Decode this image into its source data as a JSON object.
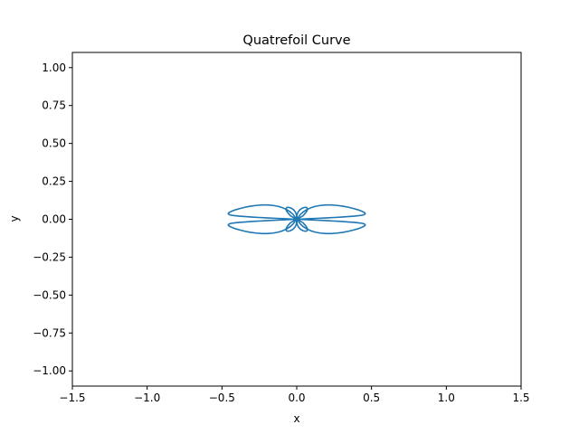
{
  "chart_data": {
    "type": "line",
    "title": "Quatrefoil Curve",
    "xlabel": "x",
    "ylabel": "y",
    "xlim": [
      -1.5,
      1.5
    ],
    "ylim": [
      -1.1,
      1.1
    ],
    "grid": false,
    "x_ticks": [
      -1.5,
      -1.0,
      -0.5,
      0.0,
      0.5,
      1.0,
      1.5
    ],
    "x_tick_labels": [
      "−1.5",
      "−1.0",
      "−0.5",
      "0.0",
      "0.5",
      "1.0",
      "1.5"
    ],
    "y_ticks": [
      1.0,
      0.75,
      0.5,
      0.25,
      0.0,
      -0.25,
      -0.5,
      -0.75,
      -1.0
    ],
    "y_tick_labels": [
      "1.00",
      "0.75",
      "0.50",
      "0.25",
      "0.00",
      "−0.25",
      "−0.50",
      "−0.75",
      "−1.00"
    ],
    "series": [
      {
        "color": "#1f77b4",
        "x": [
          0.0,
          0.046,
          0.091,
          0.134,
          0.176,
          0.216,
          0.253,
          0.288,
          0.32,
          0.349,
          0.375,
          0.398,
          0.418,
          0.434,
          0.447,
          0.455,
          0.458,
          0.455,
          0.446,
          0.43,
          0.408,
          0.38,
          0.347,
          0.311,
          0.272,
          0.233,
          0.194,
          0.157,
          0.123,
          0.092,
          0.066,
          0.044,
          0.027,
          0.015,
          0.007,
          0.003,
          0.001,
          0.002,
          0.005,
          0.011,
          0.02,
          0.031,
          0.044,
          0.057,
          0.067,
          0.072,
          0.07,
          0.059,
          0.041,
          0.02,
          0.0,
          -0.02,
          -0.041,
          -0.059,
          -0.07,
          -0.072,
          -0.067,
          -0.057,
          -0.044,
          -0.031,
          -0.02,
          -0.011,
          -0.005,
          -0.002,
          -0.001,
          -0.003,
          -0.007,
          -0.015,
          -0.027,
          -0.044,
          -0.066,
          -0.092,
          -0.123,
          -0.157,
          -0.194,
          -0.233,
          -0.272,
          -0.311,
          -0.347,
          -0.38,
          -0.408,
          -0.43,
          -0.446,
          -0.455,
          -0.458,
          -0.455,
          -0.447,
          -0.434,
          -0.418,
          -0.398,
          -0.375,
          -0.349,
          -0.32,
          -0.288,
          -0.253,
          -0.216,
          -0.176,
          -0.134,
          -0.091,
          -0.046,
          0.0,
          0.046,
          0.091,
          0.134,
          0.176,
          0.216,
          0.253,
          0.288,
          0.32,
          0.349,
          0.375,
          0.398,
          0.418,
          0.434,
          0.447,
          0.455,
          0.458,
          0.455,
          0.446,
          0.43,
          0.408,
          0.38,
          0.347,
          0.311,
          0.272,
          0.233,
          0.194,
          0.157,
          0.123,
          0.092,
          0.066,
          0.044,
          0.027,
          0.015,
          0.007,
          0.003,
          0.001,
          0.002,
          0.005,
          0.011,
          0.02,
          0.031,
          0.044,
          0.057,
          0.067,
          0.072,
          0.07,
          0.059,
          0.041,
          0.02,
          0.0,
          -0.02,
          -0.041,
          -0.059,
          -0.07,
          -0.072,
          -0.067,
          -0.057,
          -0.044,
          -0.031,
          -0.02,
          -0.011,
          -0.005,
          -0.002,
          -0.001,
          -0.003,
          -0.007,
          -0.015,
          -0.027,
          -0.044,
          -0.066,
          -0.092,
          -0.123,
          -0.157,
          -0.194,
          -0.233,
          -0.272,
          -0.311,
          -0.347,
          -0.38,
          -0.408,
          -0.43,
          -0.446,
          -0.455,
          -0.458,
          -0.455,
          -0.447,
          -0.434,
          -0.418,
          -0.398,
          -0.375,
          -0.349,
          -0.32,
          -0.288,
          -0.253,
          -0.216,
          -0.176,
          -0.134,
          -0.091,
          -0.046,
          0.0
        ],
        "y": [
          0.0,
          -0.002,
          -0.004,
          -0.006,
          -0.008,
          -0.01,
          -0.012,
          -0.014,
          -0.016,
          -0.018,
          -0.02,
          -0.022,
          -0.024,
          -0.026,
          -0.029,
          -0.033,
          -0.037,
          -0.042,
          -0.048,
          -0.055,
          -0.063,
          -0.071,
          -0.079,
          -0.086,
          -0.091,
          -0.094,
          -0.094,
          -0.091,
          -0.085,
          -0.075,
          -0.063,
          -0.049,
          -0.034,
          -0.019,
          -0.006,
          0.006,
          0.017,
          0.028,
          0.039,
          0.05,
          0.061,
          0.07,
          0.076,
          0.079,
          0.077,
          0.07,
          0.058,
          0.042,
          0.022,
          0.011,
          0.0,
          -0.011,
          -0.022,
          -0.042,
          -0.058,
          -0.07,
          -0.077,
          -0.079,
          -0.076,
          -0.07,
          -0.061,
          -0.05,
          -0.039,
          -0.028,
          -0.017,
          -0.006,
          0.006,
          0.019,
          0.034,
          0.049,
          0.063,
          0.075,
          0.085,
          0.091,
          0.094,
          0.094,
          0.091,
          0.086,
          0.079,
          0.071,
          0.063,
          0.055,
          0.048,
          0.042,
          0.037,
          0.033,
          0.029,
          0.026,
          0.024,
          0.022,
          0.02,
          0.018,
          0.016,
          0.014,
          0.012,
          0.01,
          0.008,
          0.006,
          0.004,
          0.002,
          0.0,
          0.002,
          0.004,
          0.006,
          0.008,
          0.01,
          0.012,
          0.014,
          0.016,
          0.018,
          0.02,
          0.022,
          0.024,
          0.026,
          0.029,
          0.033,
          0.037,
          0.042,
          0.048,
          0.055,
          0.063,
          0.071,
          0.079,
          0.086,
          0.091,
          0.094,
          0.094,
          0.091,
          0.085,
          0.075,
          0.063,
          0.049,
          0.034,
          0.019,
          0.006,
          -0.006,
          -0.017,
          -0.028,
          -0.039,
          -0.05,
          -0.061,
          -0.07,
          -0.076,
          -0.079,
          -0.077,
          -0.07,
          -0.058,
          -0.042,
          -0.022,
          -0.011,
          0.0,
          0.011,
          0.022,
          0.042,
          0.058,
          0.07,
          0.077,
          0.079,
          0.076,
          0.07,
          0.061,
          0.05,
          0.039,
          0.028,
          0.017,
          0.006,
          -0.006,
          -0.019,
          -0.034,
          -0.049,
          -0.063,
          -0.075,
          -0.085,
          -0.091,
          -0.094,
          -0.094,
          -0.091,
          -0.086,
          -0.079,
          -0.071,
          -0.063,
          -0.055,
          -0.048,
          -0.042,
          -0.037,
          -0.033,
          -0.029,
          -0.026,
          -0.024,
          -0.022,
          -0.02,
          -0.018,
          -0.016,
          -0.014,
          -0.012,
          -0.01,
          -0.008,
          -0.006,
          -0.004,
          -0.002,
          0.0
        ]
      }
    ]
  }
}
